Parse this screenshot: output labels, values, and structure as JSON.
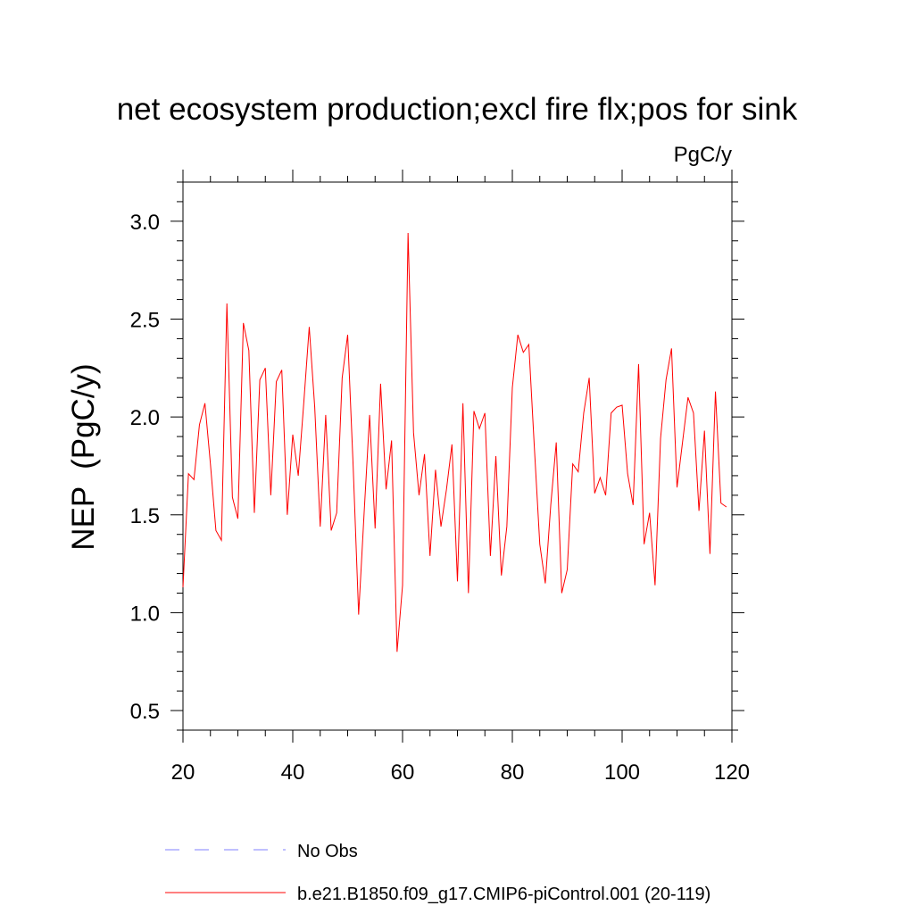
{
  "chart_data": {
    "type": "line",
    "title": "net ecosystem production;excl fire flx;pos for sink",
    "units": "PgC/y",
    "xlabel": "",
    "ylabel": "NEP  (PgC/y)",
    "xlim": [
      20,
      120
    ],
    "ylim": [
      0.4,
      3.2
    ],
    "xticks": [
      20,
      40,
      60,
      80,
      100,
      120
    ],
    "xtick_labels": [
      "20",
      "40",
      "60",
      "80",
      "100",
      "120"
    ],
    "yticks": [
      0.5,
      1.0,
      1.5,
      2.0,
      2.5,
      3.0
    ],
    "ytick_labels": [
      "0.5",
      "1.0",
      "1.5",
      "2.0",
      "2.5",
      "3.0"
    ],
    "grid": false,
    "legend": [
      {
        "label": "No Obs",
        "style": "dashed",
        "color": "#8080ff"
      },
      {
        "label": "b.e21.B1850.f09_g17.CMIP6-piControl.001 (20-119)",
        "style": "solid",
        "color": "#ff0000"
      }
    ],
    "series": [
      {
        "name": "b.e21.B1850.f09_g17.CMIP6-piControl.001 (20-119)",
        "color": "#ff0000",
        "x_start": 20,
        "values": [
          1.13,
          1.71,
          1.68,
          1.96,
          2.07,
          1.76,
          1.42,
          1.37,
          2.58,
          1.59,
          1.48,
          2.48,
          2.34,
          1.51,
          2.19,
          2.25,
          1.6,
          2.18,
          2.24,
          1.5,
          1.91,
          1.7,
          2.07,
          2.46,
          2.05,
          1.44,
          2.01,
          1.42,
          1.51,
          2.2,
          2.42,
          1.75,
          0.99,
          1.51,
          2.01,
          1.43,
          2.17,
          1.63,
          1.88,
          0.8,
          1.14,
          2.94,
          1.92,
          1.6,
          1.81,
          1.29,
          1.73,
          1.44,
          1.63,
          1.86,
          1.16,
          2.07,
          1.1,
          2.03,
          1.94,
          2.02,
          1.29,
          1.8,
          1.19,
          1.44,
          2.15,
          2.42,
          2.33,
          2.37,
          1.85,
          1.35,
          1.15,
          1.55,
          1.87,
          1.1,
          1.22,
          1.76,
          1.72,
          2.02,
          2.2,
          1.61,
          1.69,
          1.6,
          2.02,
          2.05,
          2.06,
          1.71,
          1.55,
          2.27,
          1.35,
          1.51,
          1.14,
          1.89,
          2.19,
          2.35,
          1.64,
          1.87,
          2.1,
          2.02,
          1.52,
          1.93,
          1.3,
          2.13,
          1.56,
          1.54
        ]
      }
    ]
  }
}
